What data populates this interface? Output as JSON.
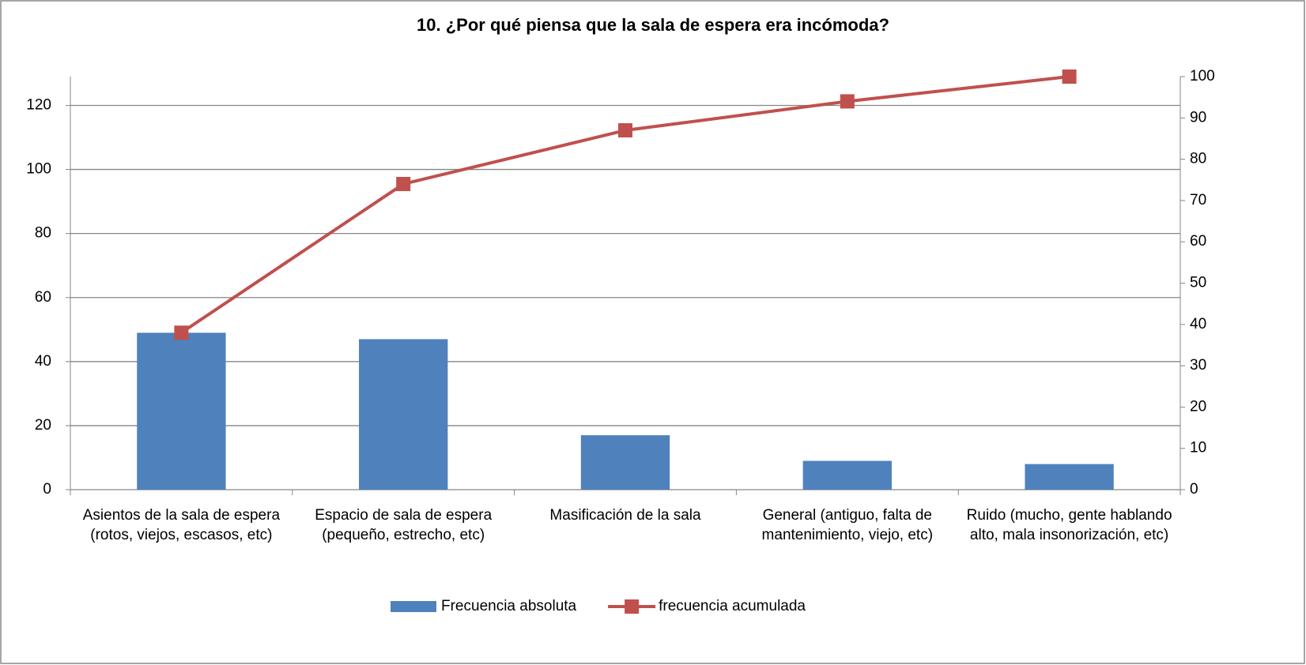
{
  "chart_data": {
    "type": "bar",
    "title": "10. ¿Por qué piensa que la sala de espera era incómoda?",
    "categories": [
      "Asientos de la sala de espera (rotos, viejos, escasos, etc)",
      "Espacio de sala de espera (pequeño, estrecho, etc)",
      "Masificación de la sala",
      "General (antiguo, falta de mantenimiento, viejo, etc)",
      "Ruido (mucho, gente hablando alto, mala insonorización, etc)"
    ],
    "series": [
      {
        "name": "Frecuencia absoluta",
        "type": "bar",
        "color": "#4f81bd",
        "values": [
          49,
          47,
          17,
          9,
          8
        ]
      },
      {
        "name": "frecuencia acumulada",
        "type": "line",
        "axis": "y2",
        "color": "#c0504d",
        "values": [
          38,
          74,
          87,
          94,
          100
        ]
      }
    ],
    "ylim": [
      0,
      129
    ],
    "yticks": [
      0,
      20,
      40,
      60,
      80,
      100,
      120
    ],
    "y2lim": [
      0,
      100
    ],
    "y2ticks": [
      0,
      10,
      20,
      30,
      40,
      50,
      60,
      70,
      80,
      90,
      100
    ],
    "grid": true,
    "legend": "bottom"
  }
}
